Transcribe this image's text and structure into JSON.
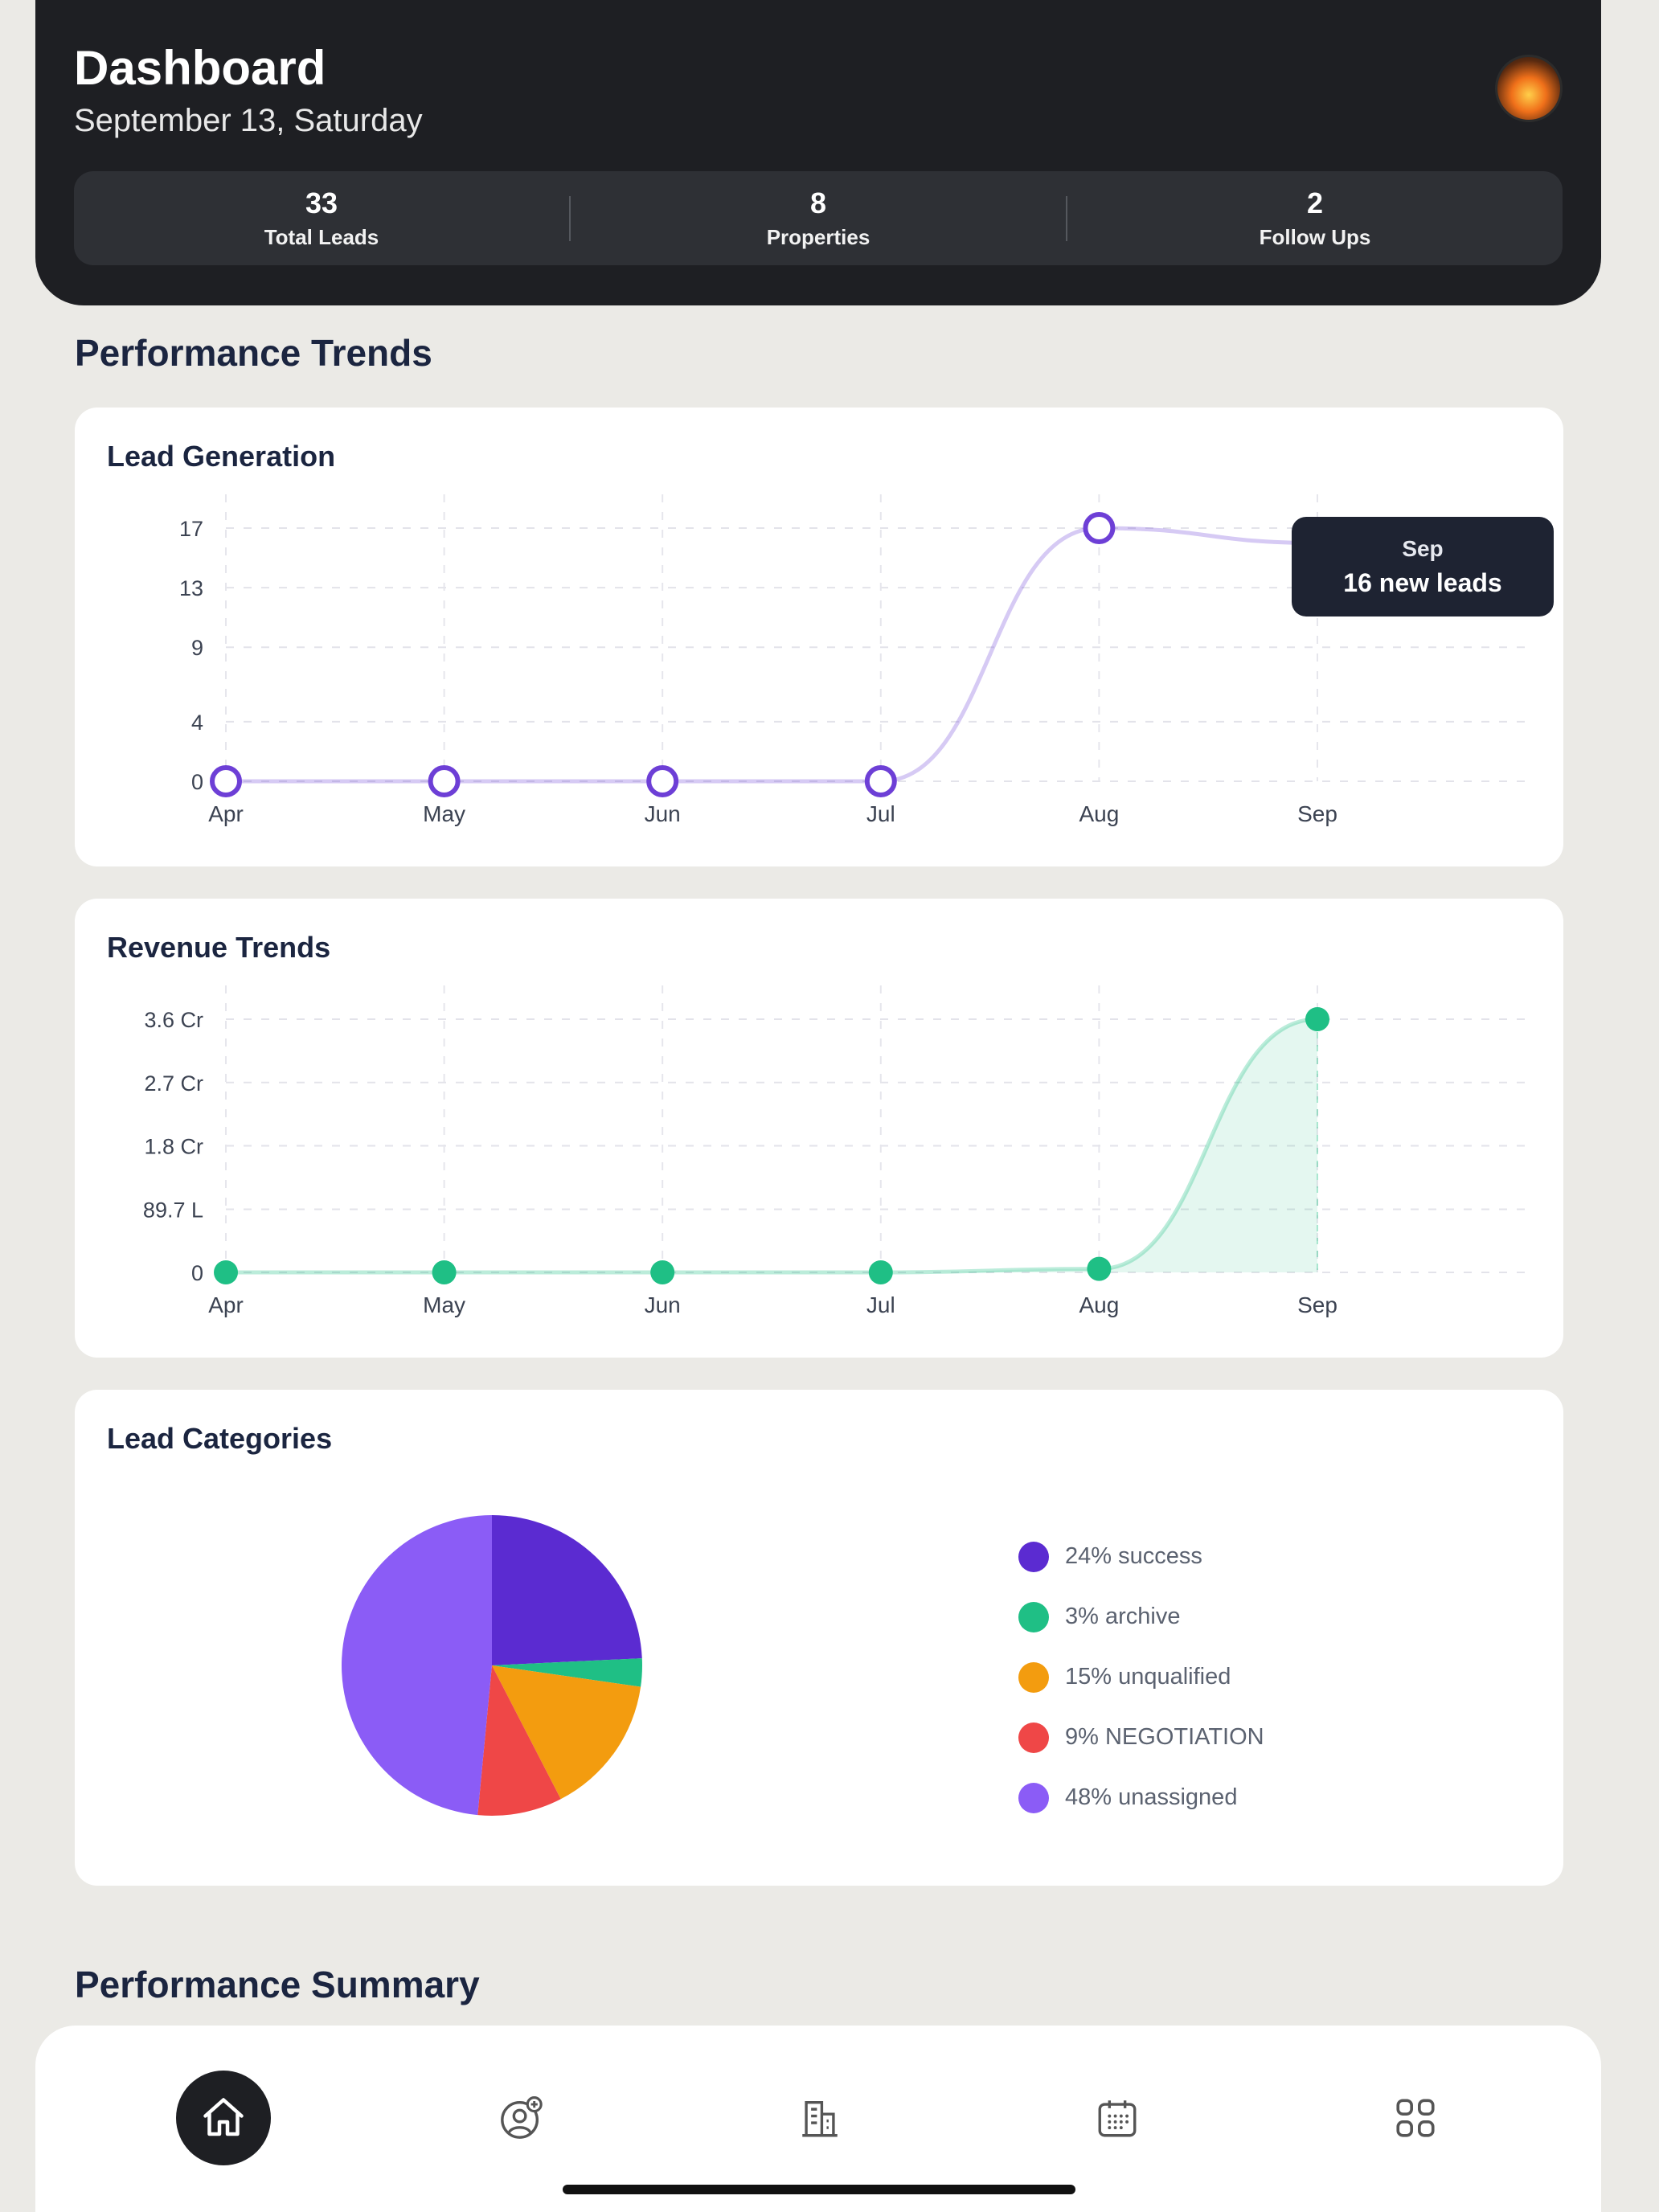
{
  "header": {
    "title": "Dashboard",
    "date": "September 13, Saturday",
    "stats": [
      {
        "value": "33",
        "label": "Total Leads"
      },
      {
        "value": "8",
        "label": "Properties"
      },
      {
        "value": "2",
        "label": "Follow Ups"
      }
    ]
  },
  "sections": {
    "trends_title": "Performance Trends",
    "summary_title": "Performance Summary"
  },
  "lead_chart": {
    "title": "Lead Generation",
    "tooltip": {
      "month": "Sep",
      "value": "16 new leads"
    }
  },
  "revenue_chart": {
    "title": "Revenue Trends"
  },
  "categories_chart": {
    "title": "Lead Categories"
  },
  "nav": {
    "items": [
      {
        "icon": "home-icon",
        "active": true
      },
      {
        "icon": "add-user-icon",
        "active": false
      },
      {
        "icon": "building-icon",
        "active": false
      },
      {
        "icon": "calendar-icon",
        "active": false
      },
      {
        "icon": "grid-icon",
        "active": false
      }
    ]
  },
  "colors": {
    "lead_line": "#6d3fd6",
    "revenue_line": "#1fbf85",
    "header_bg": "#1e1f23",
    "page_bg": "#ebeae6"
  },
  "chart_data": [
    {
      "type": "line",
      "title": "Lead Generation",
      "x": [
        "Apr",
        "May",
        "Jun",
        "Jul",
        "Aug",
        "Sep"
      ],
      "series": [
        {
          "values": [
            0,
            0,
            0,
            0,
            17,
            16
          ]
        }
      ],
      "yticks": [
        "0",
        "4",
        "9",
        "13",
        "17"
      ],
      "ytick_values": [
        0,
        4,
        9,
        13,
        17
      ],
      "ylim": [
        0,
        17
      ],
      "grid": true
    },
    {
      "type": "area",
      "title": "Revenue Trends",
      "x": [
        "Apr",
        "May",
        "Jun",
        "Jul",
        "Aug",
        "Sep"
      ],
      "series": [
        {
          "values": [
            0,
            0,
            0,
            0,
            0.05,
            3.6
          ]
        }
      ],
      "value_unit": "Cr",
      "yticks": [
        "0",
        "89.7 L",
        "1.8 Cr",
        "2.7 Cr",
        "3.6 Cr"
      ],
      "ytick_values": [
        0,
        0.897,
        1.8,
        2.7,
        3.6
      ],
      "ylim": [
        0,
        3.6
      ],
      "grid": true
    },
    {
      "type": "pie",
      "title": "Lead Categories",
      "slices": [
        {
          "label": "24% success",
          "value": 24,
          "color": "#5b2bd1"
        },
        {
          "label": "3% archive",
          "value": 3,
          "color": "#1fbf85"
        },
        {
          "label": "15% unqualified",
          "value": 15,
          "color": "#f39c0f"
        },
        {
          "label": "9% NEGOTIATION",
          "value": 9,
          "color": "#ef4747"
        },
        {
          "label": "48% unassigned",
          "value": 48,
          "color": "#8b5cf6"
        }
      ],
      "legend": "right"
    }
  ]
}
